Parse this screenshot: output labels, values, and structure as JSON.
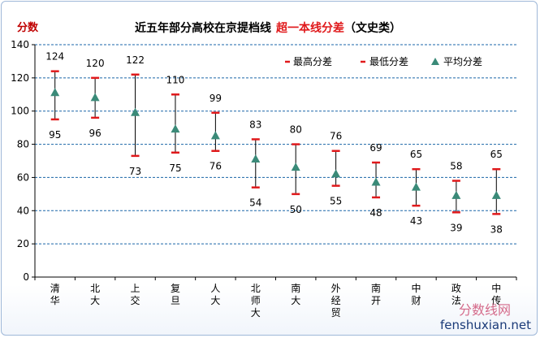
{
  "chart_data": {
    "type": "range",
    "title": "近五年部分高校在京提档线",
    "title_highlight": "超一本线分差",
    "title_suffix": "（文史类）",
    "ylabel": "分数",
    "ylim": [
      0,
      140
    ],
    "yticks": [
      0,
      20,
      40,
      60,
      80,
      100,
      120,
      140
    ],
    "grid": true,
    "legend_position": "top-right",
    "legend": {
      "max": "最高分差",
      "min": "最低分差",
      "avg": "平均分差"
    },
    "categories": [
      "清华",
      "北大",
      "上交",
      "复旦",
      "人大",
      "北师大",
      "南大",
      "外经贸",
      "南开",
      "中财",
      "政法",
      "中传"
    ],
    "max": [
      124,
      120,
      122,
      110,
      99,
      83,
      80,
      76,
      69,
      65,
      58,
      65
    ],
    "min": [
      95,
      96,
      73,
      75,
      76,
      54,
      50,
      55,
      48,
      43,
      39,
      38
    ],
    "avg": [
      111,
      108,
      99,
      89,
      85,
      71,
      66,
      62,
      57,
      54,
      49,
      49
    ],
    "colors": {
      "max": "#e0191b",
      "min": "#e0191b",
      "avg": "#3a8a78",
      "whisker": "#000000",
      "grid": "#1a66a8",
      "ylabel": "#c00000",
      "title_highlight": "#e0191b"
    }
  },
  "watermark": {
    "cn": "分数线网",
    "en": "fenshuxian.net"
  }
}
